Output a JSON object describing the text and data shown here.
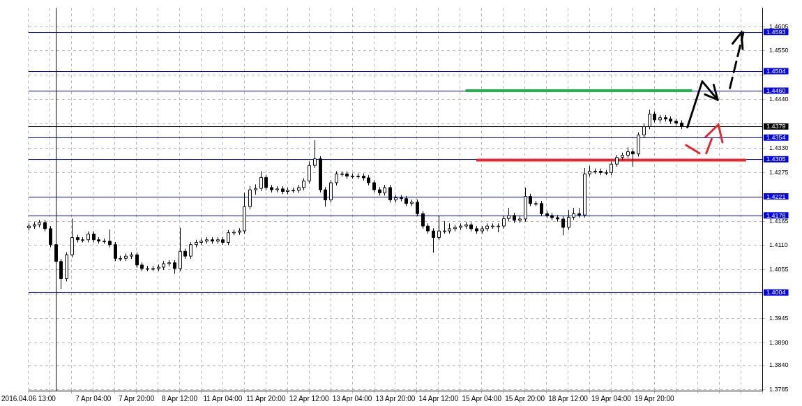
{
  "chart_data": {
    "type": "candlestick",
    "categories": [
      "2016.04.06 13:00",
      null,
      null,
      null,
      null,
      null,
      null,
      null,
      null,
      null,
      null,
      null,
      "7 Apr 04:00",
      null,
      null,
      null,
      null,
      null,
      null,
      null,
      "7 Apr 20:00",
      null,
      null,
      null,
      null,
      null,
      null,
      null,
      "8 Apr 12:00",
      null,
      null,
      null,
      null,
      null,
      null,
      null,
      "11 Apr 04:00",
      null,
      null,
      null,
      null,
      null,
      null,
      null,
      "11 Apr 20:00",
      null,
      null,
      null,
      null,
      null,
      null,
      null,
      "12 Apr 12:00",
      null,
      null,
      null,
      null,
      null,
      null,
      null,
      "13 Apr 04:00",
      null,
      null,
      null,
      null,
      null,
      null,
      null,
      "13 Apr 20:00",
      null,
      null,
      null,
      null,
      null,
      null,
      null,
      "14 Apr 12:00",
      null,
      null,
      null,
      null,
      null,
      null,
      null,
      "15 Apr 04:00",
      null,
      null,
      null,
      null,
      null,
      null,
      null,
      "15 Apr 20:00",
      null,
      null,
      null,
      null,
      null,
      null,
      null,
      "18 Apr 12:00",
      null,
      null,
      null,
      null,
      null,
      null,
      null,
      "19 Apr 04:00",
      null,
      null,
      null,
      null,
      null,
      null,
      null,
      "19 Apr 20:00",
      null,
      null,
      null,
      null,
      null,
      null,
      null,
      null,
      null,
      null,
      null,
      null,
      null,
      null,
      null,
      null,
      null,
      null,
      null,
      null
    ],
    "ohlc": [
      [
        1.415,
        1.416,
        1.4144,
        1.4154
      ],
      [
        1.4154,
        1.4163,
        1.4148,
        1.4157
      ],
      [
        1.4157,
        1.4168,
        1.4151,
        1.4162
      ],
      [
        1.4162,
        1.4168,
        1.4142,
        1.4148
      ],
      [
        1.4148,
        1.4154,
        1.4106,
        1.4112
      ],
      [
        1.4112,
        1.4118,
        1.4068,
        1.4074
      ],
      [
        1.4074,
        1.408,
        1.4012,
        1.4035
      ],
      [
        1.4035,
        1.4095,
        1.4029,
        1.4089
      ],
      [
        1.4089,
        1.4171,
        1.4083,
        1.4128
      ],
      [
        1.4128,
        1.4134,
        1.4117,
        1.4123
      ],
      [
        1.4123,
        1.4129,
        1.4117,
        1.4123
      ],
      [
        1.4123,
        1.4142,
        1.4117,
        1.4136
      ],
      [
        1.4136,
        1.4142,
        1.4117,
        1.4123
      ],
      [
        1.4123,
        1.4129,
        1.4114,
        1.412
      ],
      [
        1.412,
        1.4126,
        1.4114,
        1.412
      ],
      [
        1.412,
        1.4146,
        1.4106,
        1.4112
      ],
      [
        1.4112,
        1.4118,
        1.4075,
        1.4081
      ],
      [
        1.4081,
        1.4087,
        1.4075,
        1.4081
      ],
      [
        1.4081,
        1.4092,
        1.4075,
        1.4086
      ],
      [
        1.4086,
        1.4095,
        1.408,
        1.4089
      ],
      [
        1.4089,
        1.4095,
        1.406,
        1.4066
      ],
      [
        1.4066,
        1.4072,
        1.4052,
        1.4058
      ],
      [
        1.4058,
        1.4064,
        1.4052,
        1.4058
      ],
      [
        1.4058,
        1.4064,
        1.4052,
        1.4058
      ],
      [
        1.4058,
        1.4067,
        1.4052,
        1.4061
      ],
      [
        1.4061,
        1.4075,
        1.4055,
        1.4069
      ],
      [
        1.4069,
        1.4077,
        1.4063,
        1.4071
      ],
      [
        1.4071,
        1.4077,
        1.4046,
        1.4058
      ],
      [
        1.4058,
        1.415,
        1.4052,
        1.4097
      ],
      [
        1.4097,
        1.4103,
        1.408,
        1.4086
      ],
      [
        1.4086,
        1.4118,
        1.408,
        1.4112
      ],
      [
        1.4112,
        1.4123,
        1.4106,
        1.4117
      ],
      [
        1.4117,
        1.4126,
        1.4111,
        1.412
      ],
      [
        1.412,
        1.4129,
        1.4114,
        1.4123
      ],
      [
        1.4123,
        1.4129,
        1.4114,
        1.412
      ],
      [
        1.412,
        1.4129,
        1.4114,
        1.4123
      ],
      [
        1.4123,
        1.4129,
        1.4111,
        1.4117
      ],
      [
        1.4117,
        1.4145,
        1.4111,
        1.4139
      ],
      [
        1.4139,
        1.4146,
        1.4133,
        1.414
      ],
      [
        1.414,
        1.4149,
        1.4134,
        1.4143
      ],
      [
        1.4143,
        1.4229,
        1.4137,
        1.4198
      ],
      [
        1.4198,
        1.4245,
        1.4192,
        1.4236
      ],
      [
        1.4236,
        1.4248,
        1.4225,
        1.4239
      ],
      [
        1.4239,
        1.4278,
        1.4233,
        1.4264
      ],
      [
        1.4264,
        1.427,
        1.4235,
        1.4241
      ],
      [
        1.4241,
        1.4247,
        1.423,
        1.4236
      ],
      [
        1.4236,
        1.4244,
        1.423,
        1.4238
      ],
      [
        1.4238,
        1.4244,
        1.4226,
        1.4232
      ],
      [
        1.4232,
        1.4241,
        1.4226,
        1.4235
      ],
      [
        1.4235,
        1.4241,
        1.4229,
        1.4235
      ],
      [
        1.4235,
        1.4247,
        1.4229,
        1.4241
      ],
      [
        1.4241,
        1.4262,
        1.4235,
        1.4256
      ],
      [
        1.4256,
        1.43,
        1.425,
        1.4291
      ],
      [
        1.4291,
        1.4348,
        1.4285,
        1.4306
      ],
      [
        1.4306,
        1.4312,
        1.423,
        1.4236
      ],
      [
        1.4236,
        1.4242,
        1.4198,
        1.4213
      ],
      [
        1.4213,
        1.4258,
        1.4207,
        1.4252
      ],
      [
        1.4252,
        1.4278,
        1.4246,
        1.4272
      ],
      [
        1.4272,
        1.4278,
        1.4266,
        1.4272
      ],
      [
        1.4272,
        1.4278,
        1.4261,
        1.4267
      ],
      [
        1.4267,
        1.4273,
        1.4261,
        1.4267
      ],
      [
        1.4267,
        1.4273,
        1.4261,
        1.4267
      ],
      [
        1.4267,
        1.4273,
        1.4257,
        1.4263
      ],
      [
        1.4263,
        1.4269,
        1.4246,
        1.4252
      ],
      [
        1.4252,
        1.4258,
        1.423,
        1.4236
      ],
      [
        1.4236,
        1.4242,
        1.4223,
        1.4229
      ],
      [
        1.4229,
        1.4247,
        1.4223,
        1.4241
      ],
      [
        1.4241,
        1.4247,
        1.4207,
        1.4213
      ],
      [
        1.4213,
        1.4224,
        1.4207,
        1.4218
      ],
      [
        1.4218,
        1.4224,
        1.421,
        1.4216
      ],
      [
        1.4216,
        1.4222,
        1.4199,
        1.4205
      ],
      [
        1.4205,
        1.4214,
        1.4199,
        1.4208
      ],
      [
        1.4208,
        1.4214,
        1.4176,
        1.4182
      ],
      [
        1.4182,
        1.4188,
        1.4148,
        1.4154
      ],
      [
        1.4154,
        1.416,
        1.4137,
        1.4143
      ],
      [
        1.4143,
        1.4149,
        1.4094,
        1.4128
      ],
      [
        1.4128,
        1.4178,
        1.4122,
        1.4143
      ],
      [
        1.4143,
        1.4165,
        1.4137,
        1.4143
      ],
      [
        1.4143,
        1.416,
        1.4137,
        1.4148
      ],
      [
        1.4148,
        1.4157,
        1.4142,
        1.4151
      ],
      [
        1.4151,
        1.416,
        1.4145,
        1.4154
      ],
      [
        1.4154,
        1.4163,
        1.4148,
        1.4157
      ],
      [
        1.4157,
        1.4163,
        1.4142,
        1.4148
      ],
      [
        1.4148,
        1.4154,
        1.4137,
        1.4143
      ],
      [
        1.4143,
        1.4154,
        1.4137,
        1.4148
      ],
      [
        1.4148,
        1.416,
        1.4142,
        1.4154
      ],
      [
        1.4154,
        1.416,
        1.4148,
        1.4154
      ],
      [
        1.4154,
        1.416,
        1.414,
        1.4154
      ],
      [
        1.4154,
        1.4177,
        1.4148,
        1.4171
      ],
      [
        1.4171,
        1.4195,
        1.4165,
        1.4178
      ],
      [
        1.4178,
        1.4184,
        1.4161,
        1.4167
      ],
      [
        1.4167,
        1.4176,
        1.4161,
        1.417
      ],
      [
        1.417,
        1.4241,
        1.4164,
        1.4221
      ],
      [
        1.4221,
        1.4227,
        1.4199,
        1.4205
      ],
      [
        1.4205,
        1.4211,
        1.4199,
        1.4205
      ],
      [
        1.4205,
        1.4211,
        1.4176,
        1.4182
      ],
      [
        1.4182,
        1.4188,
        1.4172,
        1.4178
      ],
      [
        1.4178,
        1.4184,
        1.4167,
        1.4173
      ],
      [
        1.4173,
        1.4179,
        1.4164,
        1.417
      ],
      [
        1.417,
        1.4176,
        1.4133,
        1.4151
      ],
      [
        1.4151,
        1.419,
        1.4145,
        1.4174
      ],
      [
        1.4174,
        1.4195,
        1.4168,
        1.4182
      ],
      [
        1.4182,
        1.4195,
        1.4173,
        1.4179
      ],
      [
        1.4179,
        1.4285,
        1.4173,
        1.4272
      ],
      [
        1.4272,
        1.429,
        1.4266,
        1.4278
      ],
      [
        1.4278,
        1.4284,
        1.4272,
        1.4278
      ],
      [
        1.4278,
        1.4284,
        1.4269,
        1.4275
      ],
      [
        1.4275,
        1.4281,
        1.4269,
        1.4275
      ],
      [
        1.4275,
        1.43,
        1.4269,
        1.4294
      ],
      [
        1.4294,
        1.4315,
        1.4288,
        1.4309
      ],
      [
        1.4309,
        1.432,
        1.4303,
        1.4314
      ],
      [
        1.4314,
        1.4332,
        1.4308,
        1.4322
      ],
      [
        1.4322,
        1.4328,
        1.4288,
        1.4317
      ],
      [
        1.4317,
        1.4366,
        1.4311,
        1.436
      ],
      [
        1.436,
        1.4385,
        1.4354,
        1.4379
      ],
      [
        1.4379,
        1.4417,
        1.4373,
        1.4407
      ],
      [
        1.4407,
        1.4413,
        1.4388,
        1.4394
      ],
      [
        1.4394,
        1.4405,
        1.4388,
        1.4399
      ],
      [
        1.4399,
        1.4405,
        1.439,
        1.4396
      ],
      [
        1.4396,
        1.4402,
        1.4385,
        1.4391
      ],
      [
        1.4391,
        1.4397,
        1.4381,
        1.4387
      ],
      [
        1.4387,
        1.4393,
        1.4373,
        1.4379
      ],
      null,
      null,
      null,
      null,
      null,
      null,
      null,
      null,
      null,
      null,
      null,
      null,
      null,
      null,
      null
    ],
    "series": [
      {
        "type": "line",
        "color": "#22b04c",
        "values": [
          null,
          null,
          null,
          null,
          null,
          null,
          null,
          null,
          null,
          null,
          null,
          null,
          null,
          null,
          null,
          null,
          null,
          null,
          null,
          null,
          null,
          null,
          null,
          null,
          null,
          null,
          null,
          null,
          null,
          null,
          null,
          null,
          null,
          null,
          null,
          null,
          null,
          null,
          null,
          null,
          null,
          null,
          null,
          null,
          null,
          null,
          null,
          null,
          null,
          null,
          null,
          null,
          null,
          null,
          null,
          null,
          null,
          null,
          null,
          null,
          null,
          null,
          null,
          null,
          null,
          null,
          null,
          null,
          null,
          null,
          null,
          null,
          null,
          null,
          null,
          null,
          null,
          null,
          null,
          null,
          null,
          1.446,
          1.446,
          1.446,
          1.446,
          1.446,
          1.446,
          1.446,
          1.446,
          1.446,
          1.446,
          1.446,
          1.446,
          1.446,
          1.446,
          1.446,
          1.446,
          1.446,
          1.446,
          1.446,
          1.446,
          1.446,
          1.446,
          1.446,
          1.446,
          1.446,
          1.446,
          1.446,
          1.446,
          1.446,
          1.446,
          1.446,
          1.446,
          1.446,
          1.446,
          1.446,
          1.446,
          1.446,
          1.446,
          1.446,
          1.446,
          1.446,
          1.446,
          1.446,
          null,
          null,
          null,
          null,
          null,
          null,
          null,
          null,
          null,
          null,
          null,
          null,
          null
        ]
      },
      {
        "type": "line",
        "color": "#e8242c",
        "values": [
          null,
          null,
          null,
          null,
          null,
          null,
          null,
          null,
          null,
          null,
          null,
          null,
          null,
          null,
          null,
          null,
          null,
          null,
          null,
          null,
          null,
          null,
          null,
          null,
          null,
          null,
          null,
          null,
          null,
          null,
          null,
          null,
          null,
          null,
          null,
          null,
          null,
          null,
          null,
          null,
          null,
          null,
          null,
          null,
          null,
          null,
          null,
          null,
          null,
          null,
          null,
          null,
          null,
          null,
          null,
          null,
          null,
          null,
          null,
          null,
          null,
          null,
          null,
          null,
          null,
          null,
          null,
          null,
          null,
          null,
          null,
          null,
          null,
          null,
          null,
          null,
          null,
          null,
          null,
          null,
          null,
          null,
          null,
          1.4303,
          1.4303,
          1.4303,
          1.4303,
          1.4303,
          1.4303,
          1.4303,
          1.4303,
          1.4303,
          1.4303,
          1.4303,
          1.4303,
          1.4303,
          1.4303,
          1.4303,
          1.4303,
          1.4303,
          1.4303,
          1.4303,
          1.4303,
          1.4303,
          1.4303,
          1.4303,
          1.4303,
          1.4303,
          1.4303,
          1.4303,
          1.4303,
          1.4303,
          1.4303,
          1.4303,
          1.4303,
          1.4303,
          1.4303,
          1.4303,
          1.4303,
          1.4303,
          1.4303,
          1.4303,
          1.4303,
          1.4303,
          1.4303,
          1.4303,
          1.4303,
          1.4303,
          1.4303,
          1.4303,
          1.4303,
          1.4303,
          1.4303,
          1.4303,
          null,
          null,
          null
        ]
      }
    ],
    "ylim": [
      1.3782,
      1.4647
    ],
    "yticks": [
      1.4605,
      {
        "value": 1.455,
        "label": "1.4550"
      },
      {
        "value": 1.4495,
        "label": null
      },
      {
        "value": 1.444,
        "label": "1.4440"
      },
      {
        "value": 1.4385,
        "label": null
      },
      {
        "value": 1.433,
        "label": "1.4330"
      },
      1.4275,
      {
        "value": 1.422,
        "label": null
      },
      1.4165,
      {
        "value": 1.411,
        "label": "1.4110"
      },
      1.4055,
      {
        "value": 1.4,
        "label": null
      },
      1.3945,
      {
        "value": 1.389,
        "label": "1.3890"
      },
      {
        "value": 1.384,
        "label": "1.3840"
      },
      1.3785
    ],
    "ref_lines": [
      {
        "axis": "y",
        "value": 1.4593,
        "label": "1.4593",
        "color": "#0000ff"
      },
      {
        "axis": "y",
        "value": 1.4504,
        "label": "1.4504",
        "color": "#0000ff"
      },
      {
        "axis": "y",
        "value": 1.446,
        "label": "1.4460",
        "color": "#0000ff"
      },
      {
        "axis": "y",
        "value": 1.4379,
        "label": "1.4379",
        "color": "#000000"
      },
      {
        "axis": "y",
        "value": 1.4354,
        "label": "1.4354",
        "color": "#0000ff"
      },
      {
        "axis": "y",
        "value": 1.4305,
        "label": "1.4305",
        "color": "#0000ff"
      },
      {
        "axis": "y",
        "value": 1.4221,
        "label": "1.4221",
        "color": "#0000ff"
      },
      {
        "axis": "y",
        "value": 1.4178,
        "label": "1.4178",
        "color": "#0000ff"
      },
      {
        "axis": "y",
        "value": 1.4004,
        "label": "1.4004",
        "color": "#0000ff"
      }
    ],
    "grid": true
  }
}
